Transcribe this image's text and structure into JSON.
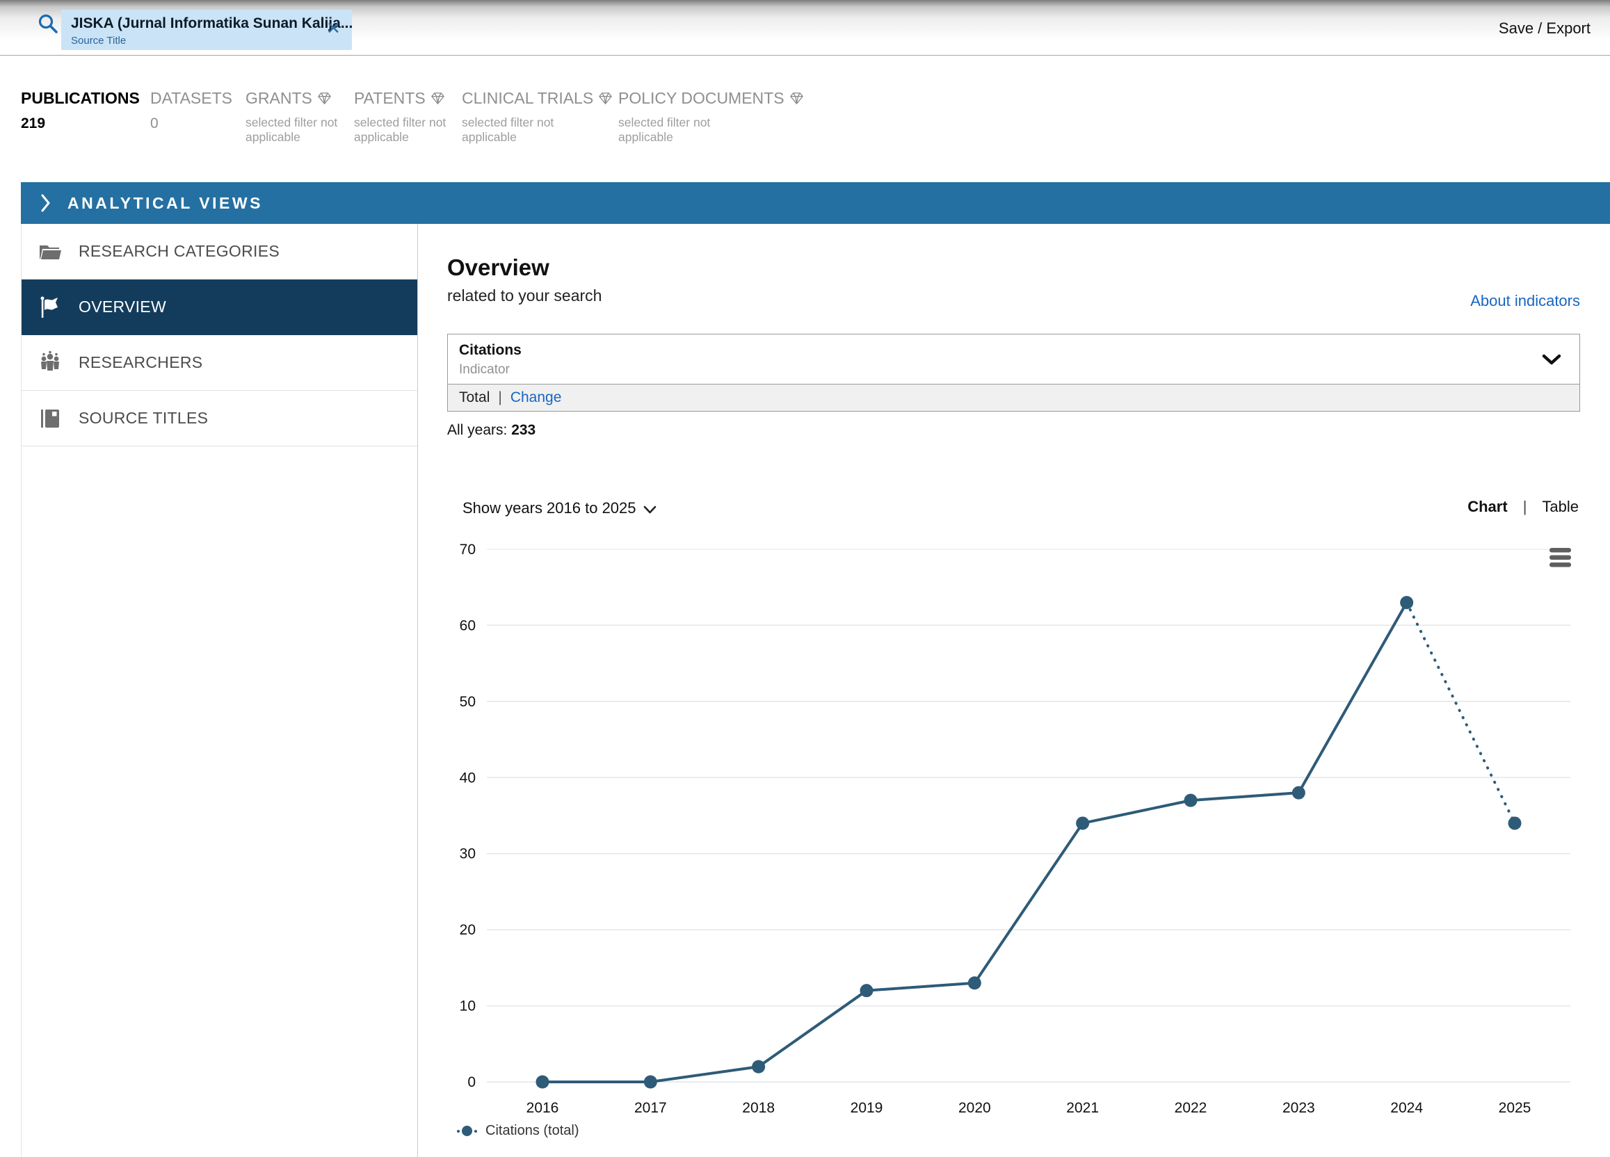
{
  "header": {
    "search_chip": {
      "title": "JISKA (Jurnal Informatika Sunan Kalija...",
      "type_label": "Source Title",
      "close": "✕"
    },
    "save_export": "Save / Export"
  },
  "tabs": [
    {
      "label": "PUBLICATIONS",
      "count": "219"
    },
    {
      "label": "DATASETS",
      "count": "0"
    },
    {
      "label": "GRANTS",
      "note": "selected filter not applicable"
    },
    {
      "label": "PATENTS",
      "note": "selected filter not applicable"
    },
    {
      "label": "CLINICAL TRIALS",
      "note": "selected filter not applicable"
    },
    {
      "label": "POLICY DOCUMENTS",
      "note": "selected filter not applicable"
    }
  ],
  "analytical_views": {
    "title": "ANALYTICAL VIEWS"
  },
  "sidebar": {
    "items": [
      {
        "label": "RESEARCH CATEGORIES"
      },
      {
        "label": "OVERVIEW"
      },
      {
        "label": "RESEARCHERS"
      },
      {
        "label": "SOURCE TITLES"
      }
    ]
  },
  "main": {
    "title": "Overview",
    "subtitle": "related to your search",
    "about_link": "About indicators",
    "indicator_select": {
      "value": "Citations",
      "label": "Indicator"
    },
    "mode_row": {
      "total": "Total",
      "divider": "|",
      "change": "Change"
    },
    "all_years_label": "All years:",
    "all_years_value": "233",
    "show_years": "Show years 2016 to 2025",
    "view_toggle": {
      "chart": "Chart",
      "divider": "|",
      "table": "Table"
    }
  },
  "chart_data": {
    "type": "line",
    "x": [
      2016,
      2017,
      2018,
      2019,
      2020,
      2021,
      2022,
      2023,
      2024,
      2025
    ],
    "series": [
      {
        "name": "Citations (total)",
        "values": [
          0,
          0,
          2,
          12,
          13,
          34,
          37,
          38,
          63,
          34
        ]
      }
    ],
    "dotted_last_segment": true,
    "title": "",
    "xlabel": "",
    "ylabel": "",
    "ylim": [
      0,
      70
    ],
    "ytick_step": 10,
    "grid": true,
    "legend": "Citations (total)",
    "legend_position": "bottom-left",
    "line_color": "#2e5b78",
    "grid_color": "#e6e6e6",
    "zero_line_color": "#ccd8e2",
    "tick_color": "#111111"
  }
}
